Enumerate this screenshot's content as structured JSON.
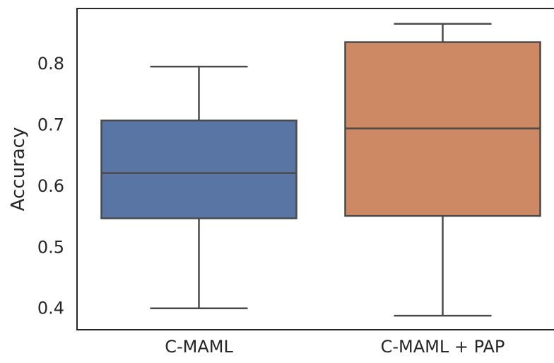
{
  "chart_data": {
    "type": "box",
    "title": "",
    "xlabel": "",
    "ylabel": "Accuracy",
    "ylim": [
      0.365,
      0.89
    ],
    "yticks": [
      0.4,
      0.5,
      0.6,
      0.7,
      0.8
    ],
    "ytick_labels": [
      "0.4",
      "0.5",
      "0.6",
      "0.7",
      "0.8"
    ],
    "grid": false,
    "categories": [
      "C-MAML",
      "C-MAML + PAP"
    ],
    "boxes": [
      {
        "category": "C-MAML",
        "whisker_low": 0.4,
        "q1": 0.547,
        "median": 0.621,
        "q3": 0.707,
        "whisker_high": 0.795,
        "color": "#5875a4"
      },
      {
        "category": "C-MAML + PAP",
        "whisker_low": 0.388,
        "q1": 0.551,
        "median": 0.694,
        "q3": 0.835,
        "whisker_high": 0.865,
        "color": "#cc8963"
      }
    ],
    "line_color": "#4a4a4a",
    "frame_color": "#262626"
  }
}
